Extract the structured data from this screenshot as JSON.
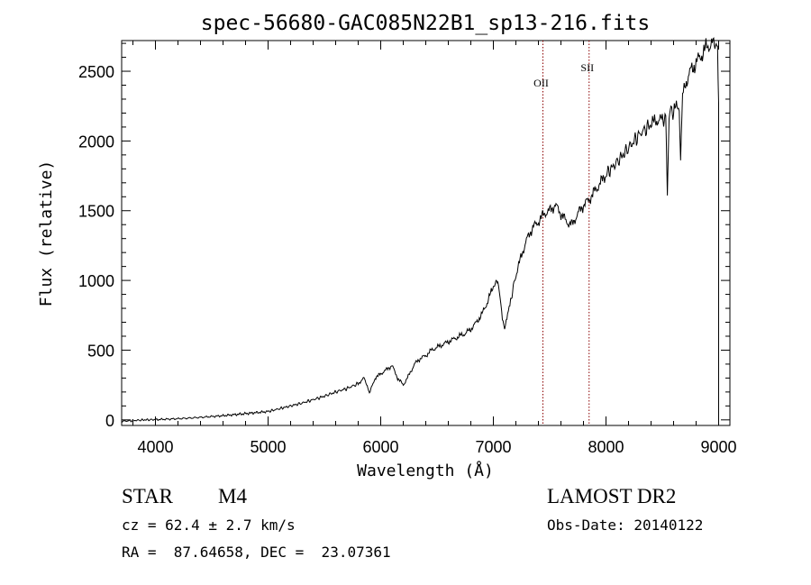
{
  "chart_data": {
    "type": "line",
    "title": "spec-56680-GAC085N22B1_sp13-216.fits",
    "xlabel": "Wavelength (Å)",
    "ylabel": "Flux (relative)",
    "xlim": [
      3700,
      9100
    ],
    "ylim": [
      -40,
      2720
    ],
    "xticks": [
      4000,
      5000,
      6000,
      7000,
      8000,
      9000
    ],
    "yticks": [
      0,
      500,
      1000,
      1500,
      2000,
      2500
    ],
    "xtick_labels": [
      "4000",
      "5000",
      "6000",
      "7000",
      "8000",
      "9000"
    ],
    "ytick_labels": [
      "0",
      "500",
      "1000",
      "1500",
      "2000",
      "2500"
    ],
    "grid": false,
    "series": [
      {
        "name": "",
        "x": [
          3700,
          3800,
          3900,
          4000,
          4200,
          4400,
          4600,
          4800,
          5000,
          5100,
          5200,
          5300,
          5400,
          5500,
          5600,
          5700,
          5800,
          5850,
          5880,
          5900,
          5950,
          6000,
          6050,
          6100,
          6150,
          6200,
          6250,
          6300,
          6350,
          6400,
          6450,
          6500,
          6550,
          6600,
          6650,
          6700,
          6750,
          6800,
          6850,
          6900,
          6950,
          7000,
          7040,
          7060,
          7080,
          7100,
          7120,
          7140,
          7160,
          7200,
          7250,
          7300,
          7350,
          7400,
          7450,
          7500,
          7550,
          7600,
          7650,
          7700,
          7750,
          7800,
          7850,
          7900,
          7950,
          8000,
          8100,
          8200,
          8300,
          8400,
          8450,
          8500,
          8530,
          8545,
          8560,
          8600,
          8650,
          8662,
          8680,
          8700,
          8750,
          8800,
          8850,
          8900,
          8950,
          8990,
          9000
        ],
        "y": [
          -10,
          -5,
          0,
          2,
          8,
          18,
          30,
          45,
          60,
          80,
          100,
          120,
          145,
          170,
          200,
          225,
          260,
          300,
          250,
          190,
          300,
          330,
          360,
          390,
          300,
          250,
          320,
          400,
          440,
          460,
          500,
          520,
          540,
          560,
          580,
          600,
          620,
          650,
          700,
          760,
          850,
          960,
          1000,
          880,
          720,
          640,
          720,
          800,
          880,
          1040,
          1180,
          1300,
          1380,
          1420,
          1480,
          1500,
          1540,
          1480,
          1420,
          1400,
          1480,
          1540,
          1580,
          1640,
          1700,
          1760,
          1850,
          1950,
          2050,
          2120,
          2150,
          2150,
          2180,
          1600,
          2200,
          2220,
          2250,
          1860,
          2320,
          2400,
          2500,
          2560,
          2620,
          2680,
          2700,
          2680,
          2270
        ]
      }
    ],
    "annotations": [
      {
        "label": "OII",
        "x": 7440
      },
      {
        "label": "SII",
        "x": 7850
      }
    ]
  },
  "info": {
    "object_type": "STAR",
    "subclass": "M4",
    "survey": "LAMOST DR2",
    "redshift": "cz = 62.4 ± 2.7 km/s",
    "obs_date": "Obs-Date: 20140122",
    "coords": "RA =  87.64658, DEC =  23.07361"
  },
  "colors": {
    "spectrum": "#000000",
    "line_marker": "#8b0000",
    "axis": "#000000"
  }
}
